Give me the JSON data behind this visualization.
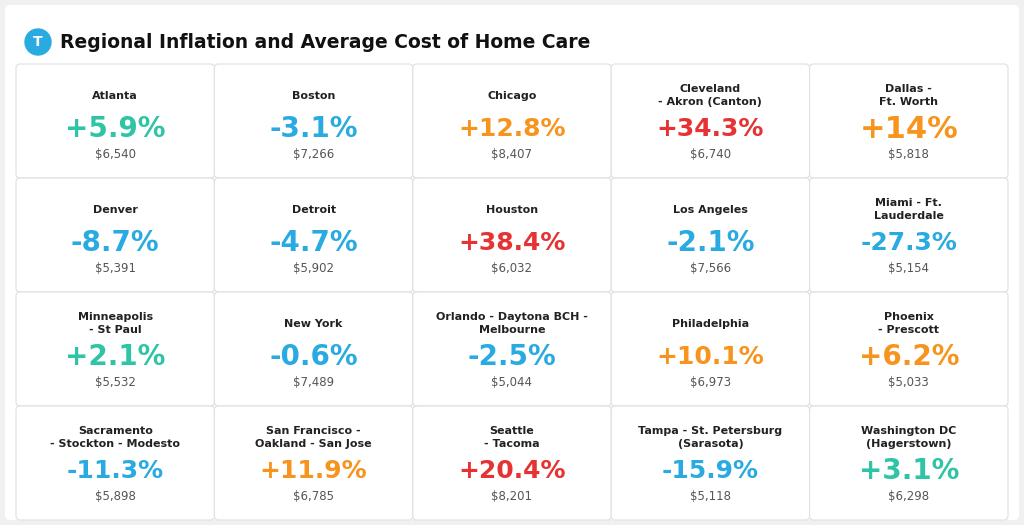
{
  "title": "Regional Inflation and Average Cost of Home Care",
  "background_color": "#f0f0f0",
  "outer_bg": "#ffffff",
  "card_background": "#ffffff",
  "title_color": "#111111",
  "city_color": "#222222",
  "cost_color": "#555555",
  "icon_color": "#29abe2",
  "grid": [
    [
      {
        "city": "Atlanta",
        "pct": "+5.9%",
        "cost": "$6,540",
        "pct_color": "#2ec4a5"
      },
      {
        "city": "Boston",
        "pct": "-3.1%",
        "cost": "$7,266",
        "pct_color": "#29abe2"
      },
      {
        "city": "Chicago",
        "pct": "+12.8%",
        "cost": "$8,407",
        "pct_color": "#f7941d"
      },
      {
        "city": "Cleveland\n- Akron (Canton)",
        "pct": "+34.3%",
        "cost": "$6,740",
        "pct_color": "#e63232"
      },
      {
        "city": "Dallas -\nFt. Worth",
        "pct": "+14%",
        "cost": "$5,818",
        "pct_color": "#f7941d"
      }
    ],
    [
      {
        "city": "Denver",
        "pct": "-8.7%",
        "cost": "$5,391",
        "pct_color": "#29abe2"
      },
      {
        "city": "Detroit",
        "pct": "-4.7%",
        "cost": "$5,902",
        "pct_color": "#29abe2"
      },
      {
        "city": "Houston",
        "pct": "+38.4%",
        "cost": "$6,032",
        "pct_color": "#e63232"
      },
      {
        "city": "Los Angeles",
        "pct": "-2.1%",
        "cost": "$7,566",
        "pct_color": "#29abe2"
      },
      {
        "city": "Miami - Ft.\nLauderdale",
        "pct": "-27.3%",
        "cost": "$5,154",
        "pct_color": "#29abe2"
      }
    ],
    [
      {
        "city": "Minneapolis\n- St Paul",
        "pct": "+2.1%",
        "cost": "$5,532",
        "pct_color": "#2ec4a5"
      },
      {
        "city": "New York",
        "pct": "-0.6%",
        "cost": "$7,489",
        "pct_color": "#29abe2"
      },
      {
        "city": "Orlando - Daytona BCH -\nMelbourne",
        "pct": "-2.5%",
        "cost": "$5,044",
        "pct_color": "#29abe2"
      },
      {
        "city": "Philadelphia",
        "pct": "+10.1%",
        "cost": "$6,973",
        "pct_color": "#f7941d"
      },
      {
        "city": "Phoenix\n- Prescott",
        "pct": "+6.2%",
        "cost": "$5,033",
        "pct_color": "#f7941d"
      }
    ],
    [
      {
        "city": "Sacramento\n- Stockton - Modesto",
        "pct": "-11.3%",
        "cost": "$5,898",
        "pct_color": "#29abe2"
      },
      {
        "city": "San Francisco -\nOakland - San Jose",
        "pct": "+11.9%",
        "cost": "$6,785",
        "pct_color": "#f7941d"
      },
      {
        "city": "Seattle\n- Tacoma",
        "pct": "+20.4%",
        "cost": "$8,201",
        "pct_color": "#e63232"
      },
      {
        "city": "Tampa - St. Petersburg\n(Sarasota)",
        "pct": "-15.9%",
        "cost": "$5,118",
        "pct_color": "#29abe2"
      },
      {
        "city": "Washington DC\n(Hagerstown)",
        "pct": "+3.1%",
        "cost": "$6,298",
        "pct_color": "#2ec4a5"
      }
    ]
  ]
}
